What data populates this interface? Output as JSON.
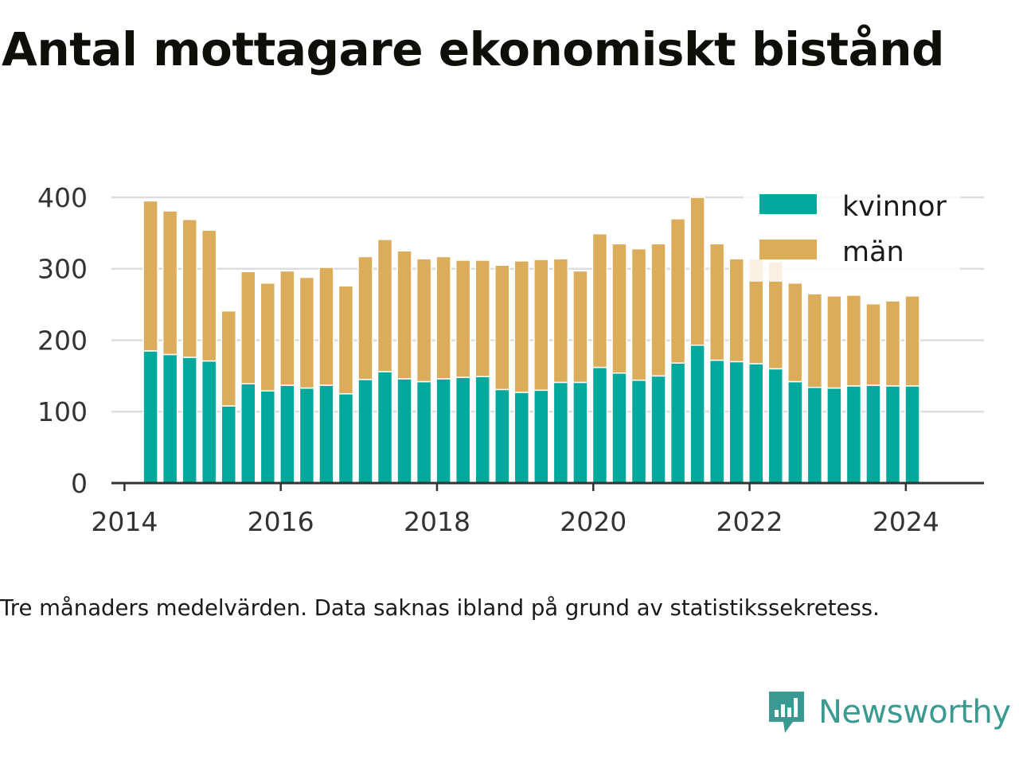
{
  "title": "Antal mottagare ekonomiskt bistånd",
  "caption": "Tre månaders medelvärden. Data saknas ibland på grund av statistikssekretess.",
  "brand": {
    "name": "Newsworthy",
    "logo_icon": "newsworthy-chart-bubble-icon",
    "color": "#3a9a91"
  },
  "chart_data": {
    "type": "bar",
    "stacked": true,
    "x_ticks": [
      "2014",
      "2016",
      "2018",
      "2020",
      "2022",
      "2024"
    ],
    "y_ticks": [
      "0",
      "100",
      "200",
      "300",
      "400"
    ],
    "ylim": [
      0,
      420
    ],
    "xlim": [
      "2013-11",
      "2025-01"
    ],
    "grid": true,
    "legend_position": "top-right",
    "x": [
      "2014-05",
      "2014-08",
      "2014-11",
      "2015-02",
      "2015-05",
      "2015-08",
      "2015-11",
      "2016-02",
      "2016-05",
      "2016-08",
      "2016-11",
      "2017-02",
      "2017-05",
      "2017-08",
      "2017-11",
      "2018-02",
      "2018-05",
      "2018-08",
      "2018-11",
      "2019-02",
      "2019-05",
      "2019-08",
      "2019-11",
      "2020-02",
      "2020-05",
      "2020-08",
      "2020-11",
      "2021-02",
      "2021-05",
      "2021-08",
      "2021-11",
      "2022-02",
      "2022-05",
      "2022-08",
      "2022-11",
      "2023-02",
      "2023-05",
      "2023-08",
      "2023-11",
      "2024-02",
      "2024-05"
    ],
    "series": [
      {
        "name": "kvinnor",
        "color": "#00a99b",
        "values": [
          185,
          180,
          176,
          171,
          108,
          139,
          129,
          137,
          133,
          137,
          125,
          145,
          156,
          146,
          142,
          146,
          148,
          149,
          131,
          127,
          130,
          141,
          141,
          162,
          154,
          144,
          150,
          168,
          193,
          172,
          170,
          167,
          160,
          142,
          134,
          133,
          136,
          137,
          136,
          136,
          0
        ]
      },
      {
        "name": "män",
        "color": "#dbad5b",
        "values": [
          210,
          201,
          193,
          183,
          133,
          157,
          151,
          160,
          155,
          165,
          151,
          172,
          185,
          179,
          172,
          171,
          164,
          163,
          174,
          184,
          183,
          173,
          156,
          187,
          181,
          184,
          185,
          202,
          207,
          163,
          144,
          147,
          150,
          138,
          131,
          129,
          127,
          114,
          119,
          126,
          0
        ]
      }
    ]
  }
}
